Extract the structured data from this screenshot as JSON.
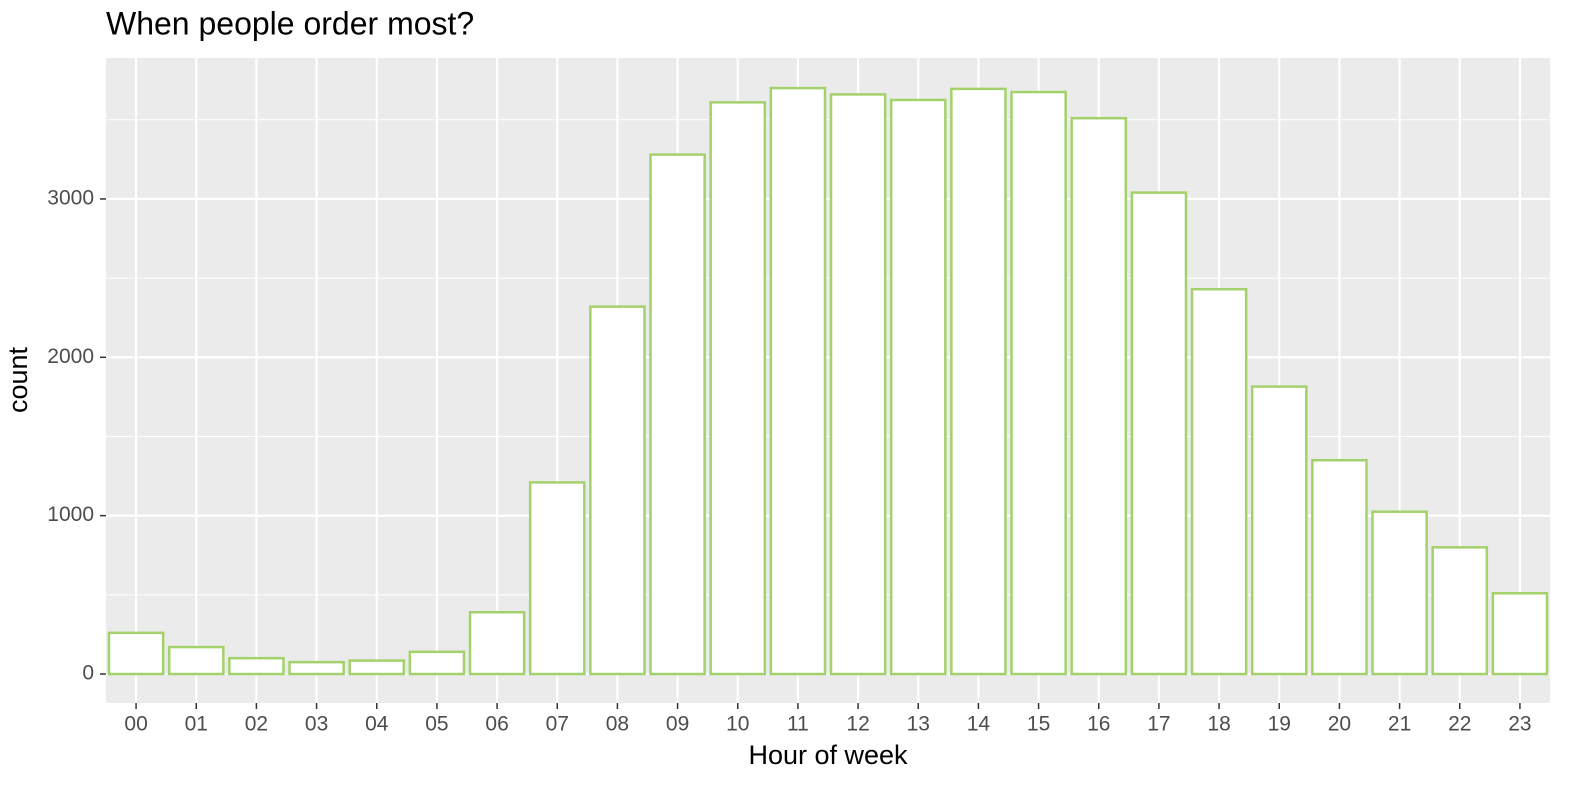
{
  "chart_data": {
    "type": "bar",
    "title": "When people order most?",
    "x_label": "Hour of week",
    "y_label": "count",
    "categories": [
      "00",
      "01",
      "02",
      "03",
      "04",
      "05",
      "06",
      "07",
      "08",
      "09",
      "10",
      "11",
      "12",
      "13",
      "14",
      "15",
      "16",
      "17",
      "18",
      "19",
      "20",
      "21",
      "22",
      "23"
    ],
    "values": [
      260,
      170,
      100,
      75,
      85,
      140,
      390,
      1210,
      2320,
      3280,
      3610,
      3700,
      3660,
      3625,
      3695,
      3675,
      3510,
      3040,
      2430,
      1815,
      1350,
      1025,
      800,
      510
    ],
    "color": "#a3d16b",
    "ylim": [
      -183,
      3890
    ],
    "yticks": [
      0,
      1000,
      2000,
      3000
    ],
    "grid": true
  }
}
